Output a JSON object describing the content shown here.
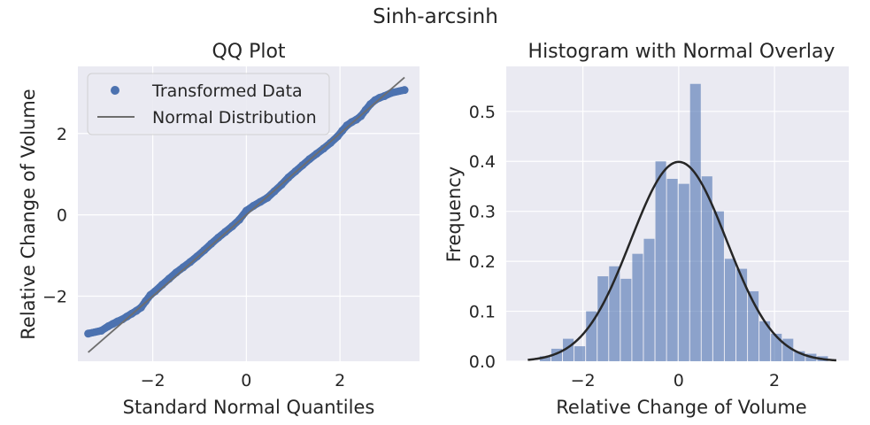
{
  "figure": {
    "suptitle": "Sinh-arcsinh"
  },
  "chart_data": [
    {
      "type": "scatter",
      "title": "QQ Plot",
      "xlabel": "Standard Normal Quantiles",
      "ylabel": "Relative Change of Volume",
      "xlim": [
        -3.6,
        3.7
      ],
      "ylim": [
        -3.6,
        3.65
      ],
      "xticks": [
        -2,
        0,
        2
      ],
      "yticks": [
        -2,
        0,
        2
      ],
      "grid": true,
      "legend": "top-left",
      "series": [
        {
          "name": "Transformed Data",
          "kind": "points",
          "color": "#4c72b0",
          "x": [
            -3.38,
            -3.1,
            -2.95,
            -2.85,
            -2.75,
            -2.65,
            -2.55,
            -2.45,
            -2.35,
            -2.25,
            -2.15,
            -2.05,
            -1.95,
            -1.8,
            -1.65,
            -1.5,
            -1.35,
            -1.2,
            -1.05,
            -0.9,
            -0.75,
            -0.6,
            -0.45,
            -0.3,
            -0.15,
            0.0,
            0.15,
            0.3,
            0.45,
            0.6,
            0.75,
            0.9,
            1.05,
            1.2,
            1.35,
            1.5,
            1.65,
            1.8,
            1.95,
            2.05,
            2.15,
            2.25,
            2.35,
            2.45,
            2.55,
            2.65,
            2.75,
            2.85,
            2.95,
            3.1,
            3.38
          ],
          "y": [
            -2.92,
            -2.85,
            -2.74,
            -2.68,
            -2.62,
            -2.57,
            -2.5,
            -2.43,
            -2.36,
            -2.28,
            -2.12,
            -1.97,
            -1.88,
            -1.72,
            -1.57,
            -1.42,
            -1.29,
            -1.16,
            -1.02,
            -0.87,
            -0.71,
            -0.56,
            -0.42,
            -0.28,
            -0.12,
            0.1,
            0.22,
            0.32,
            0.42,
            0.58,
            0.74,
            0.92,
            1.07,
            1.22,
            1.37,
            1.5,
            1.63,
            1.77,
            1.93,
            2.07,
            2.2,
            2.28,
            2.34,
            2.43,
            2.58,
            2.72,
            2.82,
            2.88,
            2.92,
            3.0,
            3.07
          ]
        },
        {
          "name": "Normal Distribution",
          "kind": "line",
          "color": "#6e6e6e",
          "x": [
            -3.38,
            3.38
          ],
          "y": [
            -3.38,
            3.38
          ]
        }
      ]
    },
    {
      "type": "bar",
      "title": "Histogram with Normal Overlay",
      "xlabel": "Relative Change of Volume",
      "ylabel": "Frequency",
      "xlim": [
        -3.6,
        3.55
      ],
      "ylim": [
        0,
        0.59
      ],
      "xticks": [
        -2,
        0,
        2
      ],
      "yticks": [
        0.0,
        0.1,
        0.2,
        0.3,
        0.4,
        0.5
      ],
      "ytick_labels": [
        "0.0",
        "0.1",
        "0.2",
        "0.3",
        "0.4",
        "0.5"
      ],
      "grid": true,
      "bin_width": 0.2413,
      "bins": {
        "left": [
          -2.9,
          -2.659,
          -2.417,
          -2.176,
          -1.934,
          -1.693,
          -1.452,
          -1.21,
          -0.969,
          -0.728,
          -0.486,
          -0.245,
          -0.003,
          0.238,
          0.479,
          0.721,
          0.962,
          1.204,
          1.445,
          1.686,
          1.928,
          2.169,
          2.411,
          2.652,
          2.893
        ],
        "values": [
          0.01,
          0.025,
          0.045,
          0.03,
          0.1,
          0.17,
          0.19,
          0.165,
          0.215,
          0.245,
          0.4,
          0.365,
          0.355,
          0.555,
          0.37,
          0.3,
          0.205,
          0.185,
          0.14,
          0.08,
          0.055,
          0.045,
          0.02,
          0.015,
          0.01
        ],
        "color": "#4c72b0",
        "opacity": 0.6
      },
      "overlay": {
        "kind": "normal-pdf",
        "mean": 0,
        "std": 1,
        "color": "#262626",
        "x_range": [
          -3.15,
          3.3
        ]
      }
    }
  ]
}
